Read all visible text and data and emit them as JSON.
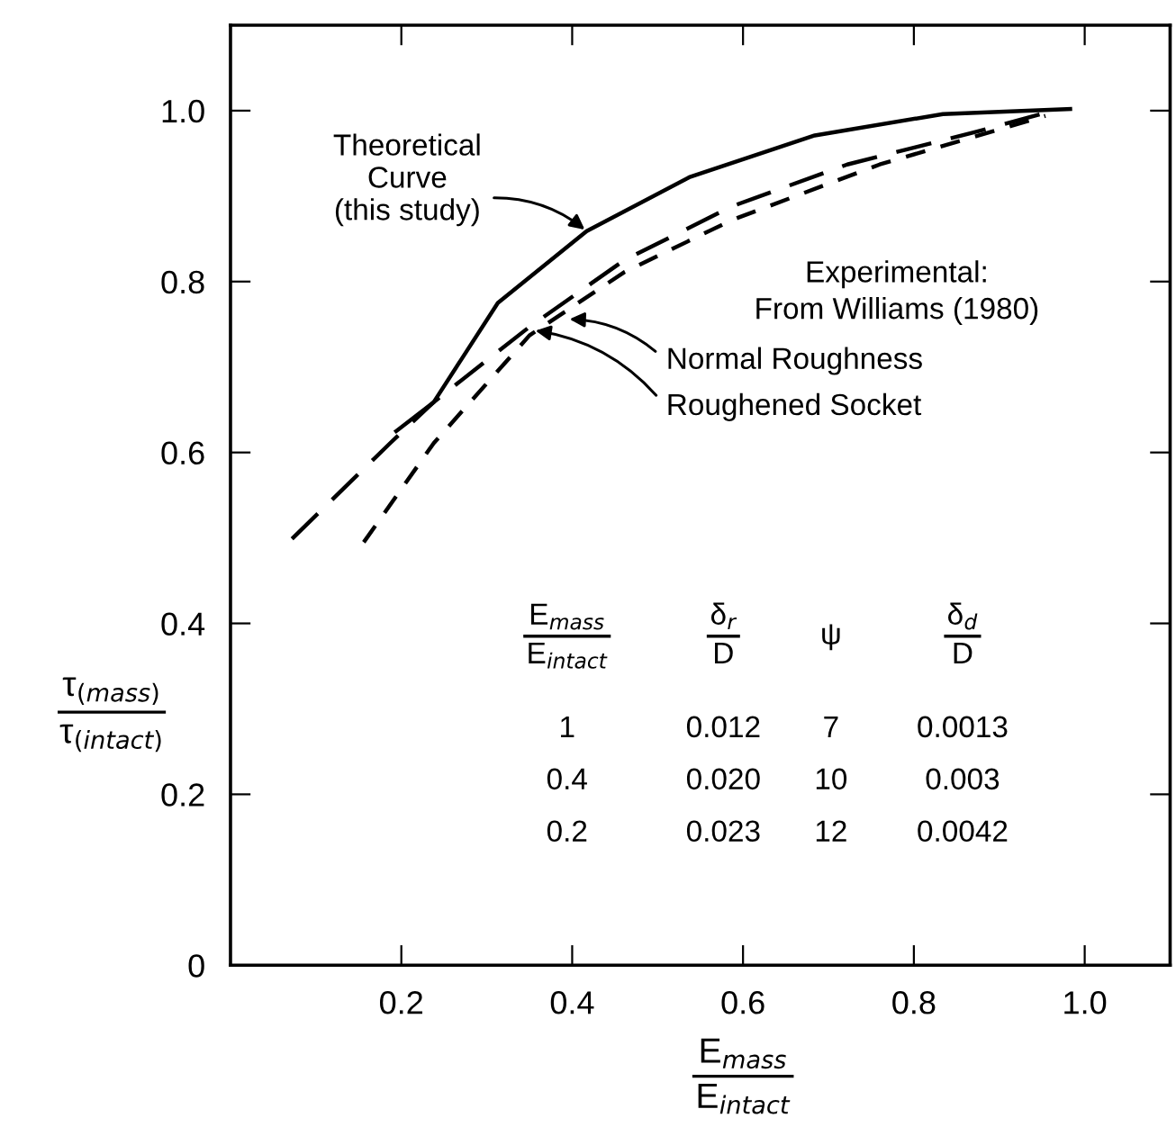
{
  "chart_data": {
    "type": "line",
    "xlabel": "E$_{mass}$\nE$_{intact}$",
    "ylabel": "τ$_{(mass)}$\nτ$_{(intact)}$",
    "xlim": [
      0,
      1.1
    ],
    "ylim": [
      0,
      1.1
    ],
    "xticks": [
      {
        "value": 0.2,
        "label": "0.2"
      },
      {
        "value": 0.4,
        "label": "0.4"
      },
      {
        "value": 0.6,
        "label": "0.6"
      },
      {
        "value": 0.8,
        "label": "0.8"
      },
      {
        "value": 1.0,
        "label": "1.0"
      }
    ],
    "yticks": [
      {
        "value": 0,
        "label": "0"
      },
      {
        "value": 0.2,
        "label": "0.2"
      },
      {
        "value": 0.4,
        "label": "0.4"
      },
      {
        "value": 0.6,
        "label": "0.6"
      },
      {
        "value": 0.8,
        "label": "0.8"
      },
      {
        "value": 1.0,
        "label": "1.0"
      }
    ],
    "grid": false,
    "marker": "none",
    "series": [
      {
        "color": "#000000",
        "line_style": "solid",
        "x": [
          0.194,
          0.238,
          0.313,
          0.417,
          0.537,
          0.684,
          0.834,
          0.983
        ],
        "values": [
          0.625,
          0.659,
          0.775,
          0.859,
          0.922,
          0.971,
          0.996,
          1.002
        ]
      },
      {
        "color": "#000000",
        "line_style": "dashed",
        "x": [
          0.072,
          0.187,
          0.238,
          0.35,
          0.461,
          0.587,
          0.722,
          0.872,
          0.956
        ],
        "values": [
          0.499,
          0.611,
          0.659,
          0.747,
          0.825,
          0.888,
          0.937,
          0.975,
          0.998
        ]
      },
      {
        "color": "#000000",
        "line_style": "dashed",
        "x": [
          0.156,
          0.238,
          0.35,
          0.461,
          0.587,
          0.76,
          0.954
        ],
        "values": [
          0.495,
          0.611,
          0.737,
          0.811,
          0.872,
          0.937,
          0.994
        ]
      }
    ],
    "annotations": [
      {
        "text": "Theoretical\nCurve\n(this study)",
        "x": 0.417,
        "y": 0.859
      },
      {
        "text": "Normal Roughness",
        "x": 0.394,
        "y": 0.756
      },
      {
        "text": "Roughened Socket",
        "x": 0.354,
        "y": 0.743
      },
      "Experimental:\nFrom Williams (1980)",
      "E$_{mass}$\nE$_{intact}$",
      "δ$_{r}$\nD",
      "ψ",
      "δ$_{d}$\nD",
      "1",
      "0.012",
      "7",
      "0.0013",
      "0.4",
      "0.020",
      "10",
      "0.003",
      "0.2",
      "0.023",
      "12",
      "0.0042"
    ]
  }
}
